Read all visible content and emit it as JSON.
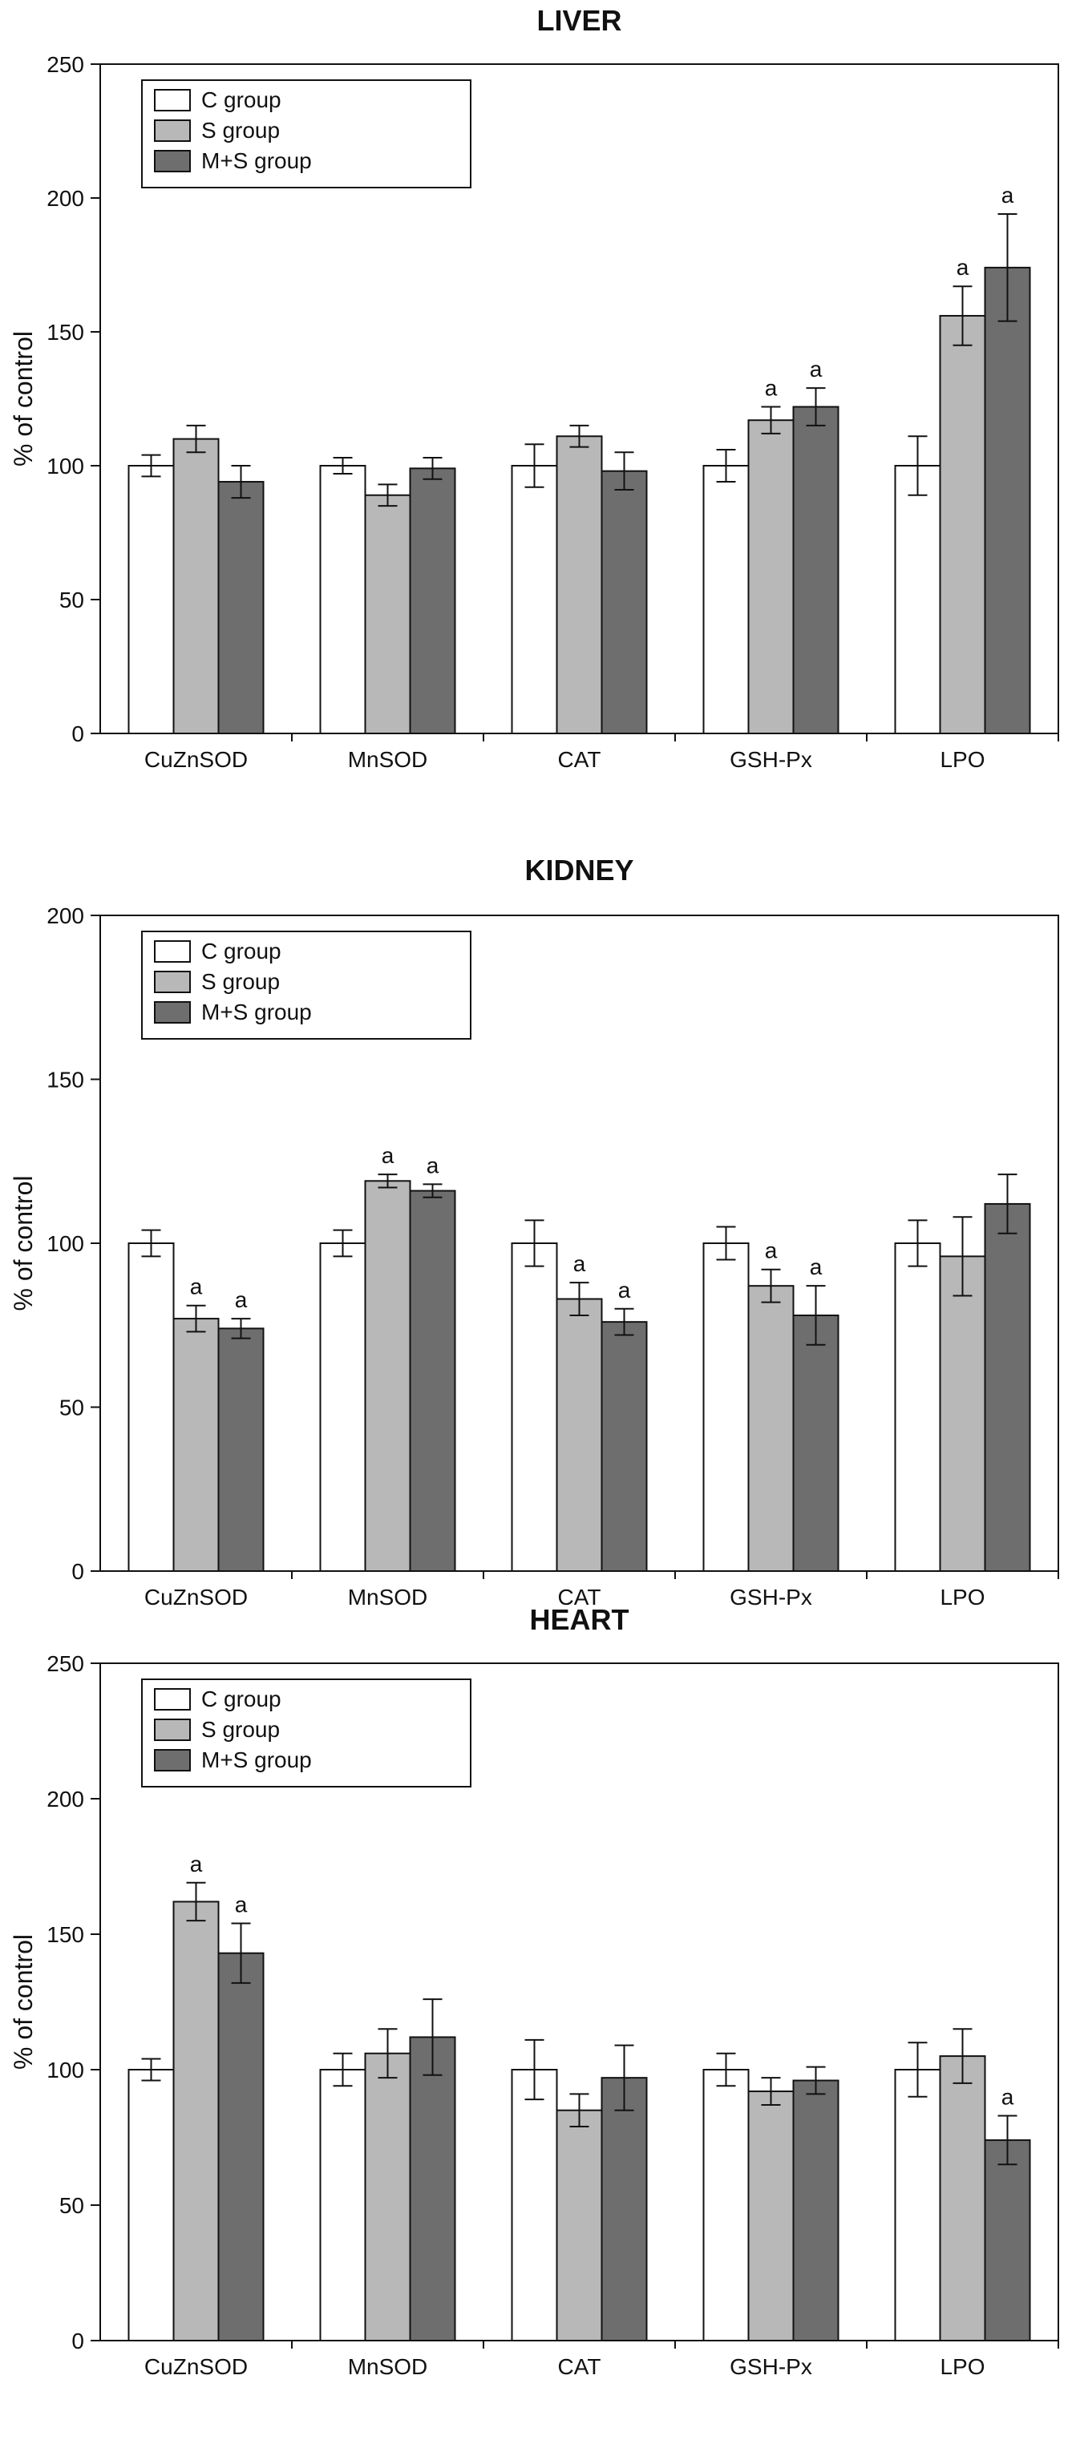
{
  "chart_data": [
    {
      "type": "bar",
      "title": "LIVER",
      "xlabel": "",
      "ylabel": "% of control",
      "ylim": [
        0,
        250
      ],
      "yticks": [
        0,
        50,
        100,
        150,
        200,
        250
      ],
      "grid": false,
      "legend_position": "top-left",
      "categories": [
        "CuZnSOD",
        "MnSOD",
        "CAT",
        "GSH-Px",
        "LPO"
      ],
      "series": [
        {
          "name": "C group",
          "color": "#ffffff",
          "values": [
            100,
            100,
            100,
            100,
            100
          ],
          "errors": [
            4,
            3,
            8,
            6,
            11
          ],
          "marks": [
            "",
            "",
            "",
            "",
            ""
          ]
        },
        {
          "name": "S group",
          "color": "#b8b8b8",
          "values": [
            110,
            89,
            111,
            117,
            156
          ],
          "errors": [
            5,
            4,
            4,
            5,
            11
          ],
          "marks": [
            "",
            "",
            "",
            "a",
            "a"
          ]
        },
        {
          "name": "M+S group",
          "color": "#6e6e6e",
          "values": [
            94,
            99,
            98,
            122,
            174
          ],
          "errors": [
            6,
            4,
            7,
            7,
            20
          ],
          "marks": [
            "",
            "",
            "",
            "a",
            "a"
          ]
        }
      ]
    },
    {
      "type": "bar",
      "title": "KIDNEY",
      "xlabel": "",
      "ylabel": "% of control",
      "ylim": [
        0,
        200
      ],
      "yticks": [
        0,
        50,
        100,
        150,
        200
      ],
      "grid": false,
      "legend_position": "top-left",
      "categories": [
        "CuZnSOD",
        "MnSOD",
        "CAT",
        "GSH-Px",
        "LPO"
      ],
      "series": [
        {
          "name": "C group",
          "color": "#ffffff",
          "values": [
            100,
            100,
            100,
            100,
            100
          ],
          "errors": [
            4,
            4,
            7,
            5,
            7
          ],
          "marks": [
            "",
            "",
            "",
            "",
            ""
          ]
        },
        {
          "name": "S group",
          "color": "#b8b8b8",
          "values": [
            77,
            119,
            83,
            87,
            96
          ],
          "errors": [
            4,
            2,
            5,
            5,
            12
          ],
          "marks": [
            "a",
            "a",
            "a",
            "a",
            ""
          ]
        },
        {
          "name": "M+S group",
          "color": "#6e6e6e",
          "values": [
            74,
            116,
            76,
            78,
            112
          ],
          "errors": [
            3,
            2,
            4,
            9,
            9
          ],
          "marks": [
            "a",
            "a",
            "a",
            "a",
            ""
          ]
        }
      ]
    },
    {
      "type": "bar",
      "title": "HEART",
      "xlabel": "",
      "ylabel": "% of control",
      "ylim": [
        0,
        250
      ],
      "yticks": [
        0,
        50,
        100,
        150,
        200,
        250
      ],
      "grid": false,
      "legend_position": "top-left",
      "categories": [
        "CuZnSOD",
        "MnSOD",
        "CAT",
        "GSH-Px",
        "LPO"
      ],
      "series": [
        {
          "name": "C group",
          "color": "#ffffff",
          "values": [
            100,
            100,
            100,
            100,
            100
          ],
          "errors": [
            4,
            6,
            11,
            6,
            10
          ],
          "marks": [
            "",
            "",
            "",
            "",
            ""
          ]
        },
        {
          "name": "S group",
          "color": "#b8b8b8",
          "values": [
            162,
            106,
            85,
            92,
            105
          ],
          "errors": [
            7,
            9,
            6,
            5,
            10
          ],
          "marks": [
            "a",
            "",
            "",
            "",
            ""
          ]
        },
        {
          "name": "M+S group",
          "color": "#6e6e6e",
          "values": [
            143,
            112,
            97,
            96,
            74
          ],
          "errors": [
            11,
            14,
            12,
            5,
            9
          ],
          "marks": [
            "a",
            "",
            "",
            "",
            "a"
          ]
        }
      ]
    }
  ]
}
